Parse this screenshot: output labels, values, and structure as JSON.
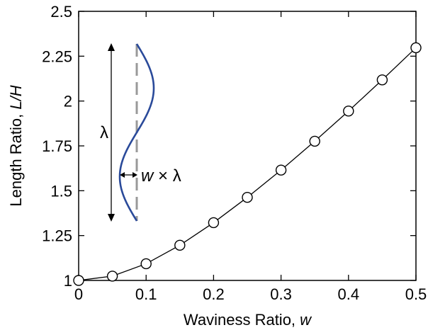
{
  "chart_data": {
    "type": "line",
    "xlabel": "Waviness Ratio, ",
    "xlabel_var": "w",
    "ylabel": "Length Ratio, ",
    "ylabel_var": "L/H",
    "xlim": [
      0,
      0.5
    ],
    "ylim": [
      1,
      2.5
    ],
    "x_ticks": [
      0,
      0.1,
      0.2,
      0.3,
      0.4,
      0.5
    ],
    "x_tick_labels": [
      "0",
      "0.1",
      "0.2",
      "0.3",
      "0.4",
      "0.5"
    ],
    "y_ticks": [
      1,
      1.25,
      1.5,
      1.75,
      2,
      2.25,
      2.5
    ],
    "y_tick_labels": [
      "1",
      "1.25",
      "1.5",
      "1.75",
      "2",
      "2.25",
      "2.5"
    ],
    "grid": false,
    "legend": "none",
    "series": [
      {
        "marker": "open-circle",
        "color": "#000000",
        "x": [
          0,
          0.05,
          0.1,
          0.15,
          0.2,
          0.25,
          0.3,
          0.35,
          0.4,
          0.45,
          0.5
        ],
        "y": [
          1.0,
          1.024,
          1.093,
          1.196,
          1.322,
          1.463,
          1.615,
          1.776,
          1.944,
          2.118,
          2.297
        ]
      }
    ],
    "inset": {
      "wave_color": "#2a4a9a",
      "axis_color": "#999999",
      "lambda_label": "λ",
      "amp_label_var": "w",
      "amp_label_rest": " × λ"
    }
  }
}
